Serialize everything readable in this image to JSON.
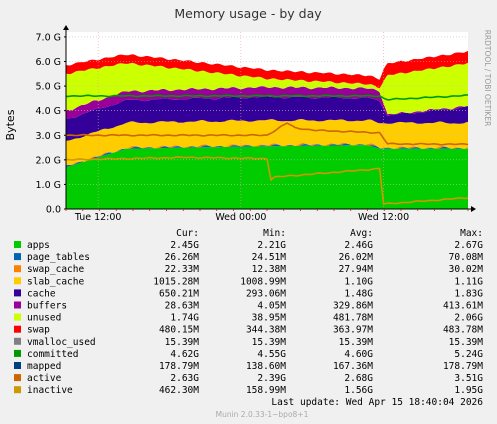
{
  "chart_data": {
    "type": "area",
    "title": "Memory usage - by day",
    "ylabel": "Bytes",
    "side_label": "RRDTOOL / TOBI OETIKER",
    "x_ticks": [
      "Tue 12:00",
      "Wed 00:00",
      "Wed 12:00"
    ],
    "y_ticks": [
      "0.0",
      "1.0 G",
      "2.0 G",
      "3.0 G",
      "4.0 G",
      "5.0 G",
      "6.0 G",
      "7.0 G"
    ],
    "ylim": [
      0,
      7.2
    ],
    "y_unit": "G",
    "grid": true,
    "stack": [
      {
        "name": "apps",
        "color": "#00cc00",
        "points": [
          [
            0,
            1.7
          ],
          [
            0.15,
            2.45
          ],
          [
            0.3,
            2.5
          ],
          [
            0.5,
            2.55
          ],
          [
            0.75,
            2.6
          ],
          [
            0.78,
            2.45
          ],
          [
            1,
            2.45
          ]
        ]
      },
      {
        "name": "page_tables",
        "color": "#0066b3",
        "points": [
          [
            0,
            0.03
          ],
          [
            1,
            0.03
          ]
        ]
      },
      {
        "name": "swap_cache",
        "color": "#ff8000",
        "points": [
          [
            0,
            0.02
          ],
          [
            1,
            0.02
          ]
        ]
      },
      {
        "name": "slab_cache",
        "color": "#ffcc00",
        "points": [
          [
            0,
            1.0
          ],
          [
            0.5,
            1.0
          ],
          [
            0.75,
            0.95
          ],
          [
            0.78,
            1.0
          ],
          [
            1,
            1.0
          ]
        ]
      },
      {
        "name": "cache",
        "color": "#330099",
        "points": [
          [
            0,
            0.9
          ],
          [
            0.5,
            0.95
          ],
          [
            0.78,
            0.9
          ],
          [
            0.8,
            0.3
          ],
          [
            1,
            0.65
          ]
        ]
      },
      {
        "name": "buffers",
        "color": "#990099",
        "points": [
          [
            0,
            0.35
          ],
          [
            0.5,
            0.4
          ],
          [
            0.78,
            0.4
          ],
          [
            0.8,
            0.03
          ],
          [
            1,
            0.03
          ]
        ]
      },
      {
        "name": "unused",
        "color": "#ccff00",
        "points": [
          [
            0,
            1.5
          ],
          [
            0.5,
            0.35
          ],
          [
            0.78,
            0.15
          ],
          [
            0.8,
            1.6
          ],
          [
            1,
            1.74
          ]
        ]
      },
      {
        "name": "swap",
        "color": "#ff0000",
        "points": [
          [
            0,
            0.35
          ],
          [
            0.78,
            0.35
          ],
          [
            0.79,
            0.48
          ],
          [
            1,
            0.48
          ]
        ]
      }
    ],
    "lines": [
      {
        "name": "committed",
        "color": "#009900",
        "points": [
          [
            0,
            4.6
          ],
          [
            0.5,
            4.6
          ],
          [
            0.78,
            4.6
          ],
          [
            0.79,
            4.5
          ],
          [
            0.8,
            4.45
          ],
          [
            1,
            4.62
          ]
        ]
      },
      {
        "name": "active",
        "color": "#cc6600",
        "points": [
          [
            0,
            3.0
          ],
          [
            0.15,
            3.0
          ],
          [
            0.35,
            3.0
          ],
          [
            0.5,
            3.0
          ],
          [
            0.55,
            3.5
          ],
          [
            0.57,
            3.3
          ],
          [
            0.62,
            3.2
          ],
          [
            0.78,
            3.1
          ],
          [
            0.8,
            2.65
          ],
          [
            1,
            2.63
          ]
        ]
      },
      {
        "name": "inactive",
        "color": "#cc9900",
        "points": [
          [
            0,
            2.0
          ],
          [
            0.3,
            2.1
          ],
          [
            0.5,
            2.05
          ],
          [
            0.51,
            1.2
          ],
          [
            0.52,
            1.3
          ],
          [
            0.75,
            1.6
          ],
          [
            0.78,
            1.65
          ],
          [
            0.79,
            0.2
          ],
          [
            1,
            0.46
          ]
        ]
      }
    ],
    "legend": {
      "headers": [
        "Cur:",
        "Min:",
        "Avg:",
        "Max:"
      ],
      "rows": [
        {
          "name": "apps",
          "color": "#00cc00",
          "cur": "2.45G",
          "min": "2.21G",
          "avg": "2.46G",
          "max": "2.67G"
        },
        {
          "name": "page_tables",
          "color": "#0066b3",
          "cur": "26.26M",
          "min": "24.51M",
          "avg": "26.02M",
          "max": "70.08M"
        },
        {
          "name": "swap_cache",
          "color": "#ff8000",
          "cur": "22.33M",
          "min": "12.38M",
          "avg": "27.94M",
          "max": "30.02M"
        },
        {
          "name": "slab_cache",
          "color": "#ffcc00",
          "cur": "1015.28M",
          "min": "1008.99M",
          "avg": "1.10G",
          "max": "1.11G"
        },
        {
          "name": "cache",
          "color": "#330099",
          "cur": "650.21M",
          "min": "293.06M",
          "avg": "1.48G",
          "max": "1.83G"
        },
        {
          "name": "buffers",
          "color": "#990099",
          "cur": "28.63M",
          "min": "4.05M",
          "avg": "329.86M",
          "max": "413.61M"
        },
        {
          "name": "unused",
          "color": "#ccff00",
          "cur": "1.74G",
          "min": "38.95M",
          "avg": "481.78M",
          "max": "2.06G"
        },
        {
          "name": "swap",
          "color": "#ff0000",
          "cur": "480.15M",
          "min": "344.38M",
          "avg": "363.97M",
          "max": "483.78M"
        },
        {
          "name": "vmalloc_used",
          "color": "#808080",
          "cur": "15.39M",
          "min": "15.39M",
          "avg": "15.39M",
          "max": "15.39M"
        },
        {
          "name": "committed",
          "color": "#009900",
          "cur": "4.62G",
          "min": "4.55G",
          "avg": "4.60G",
          "max": "5.24G"
        },
        {
          "name": "mapped",
          "color": "#004080",
          "cur": "178.79M",
          "min": "138.60M",
          "avg": "167.36M",
          "max": "178.79M"
        },
        {
          "name": "active",
          "color": "#cc6600",
          "cur": "2.63G",
          "min": "2.39G",
          "avg": "2.68G",
          "max": "3.51G"
        },
        {
          "name": "inactive",
          "color": "#cc9900",
          "cur": "462.30M",
          "min": "158.99M",
          "avg": "1.56G",
          "max": "1.95G"
        }
      ]
    },
    "last_update": "Last update: Wed Apr 15 18:40:04 2026",
    "footer": "Munin 2.0.33-1~bpo8+1"
  }
}
